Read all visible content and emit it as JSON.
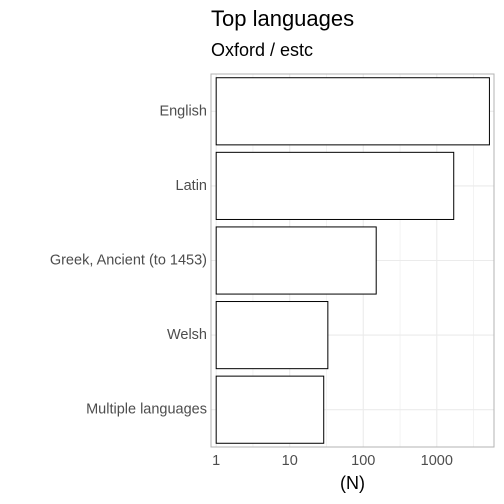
{
  "chart_data": {
    "type": "bar",
    "orientation": "horizontal",
    "title": "Top languages",
    "subtitle": "Oxford / estc",
    "xlabel": "(N)",
    "ylabel": "",
    "x_scale": "log10",
    "xlim": [
      0.85,
      6000
    ],
    "x_ticks": [
      1,
      10,
      100,
      1000
    ],
    "x_tick_labels": [
      "1",
      "10",
      "100",
      "1000"
    ],
    "categories": [
      "English",
      "Latin",
      "Greek, Ancient (to 1453)",
      "Welsh",
      "Multiple languages"
    ],
    "values": [
      5200,
      1700,
      150,
      33,
      29
    ],
    "grid": true,
    "bar_fill": "#ffffff",
    "bar_stroke": "#000000",
    "panel_border": "#b3b3b3",
    "grid_color": "#ebebeb"
  }
}
